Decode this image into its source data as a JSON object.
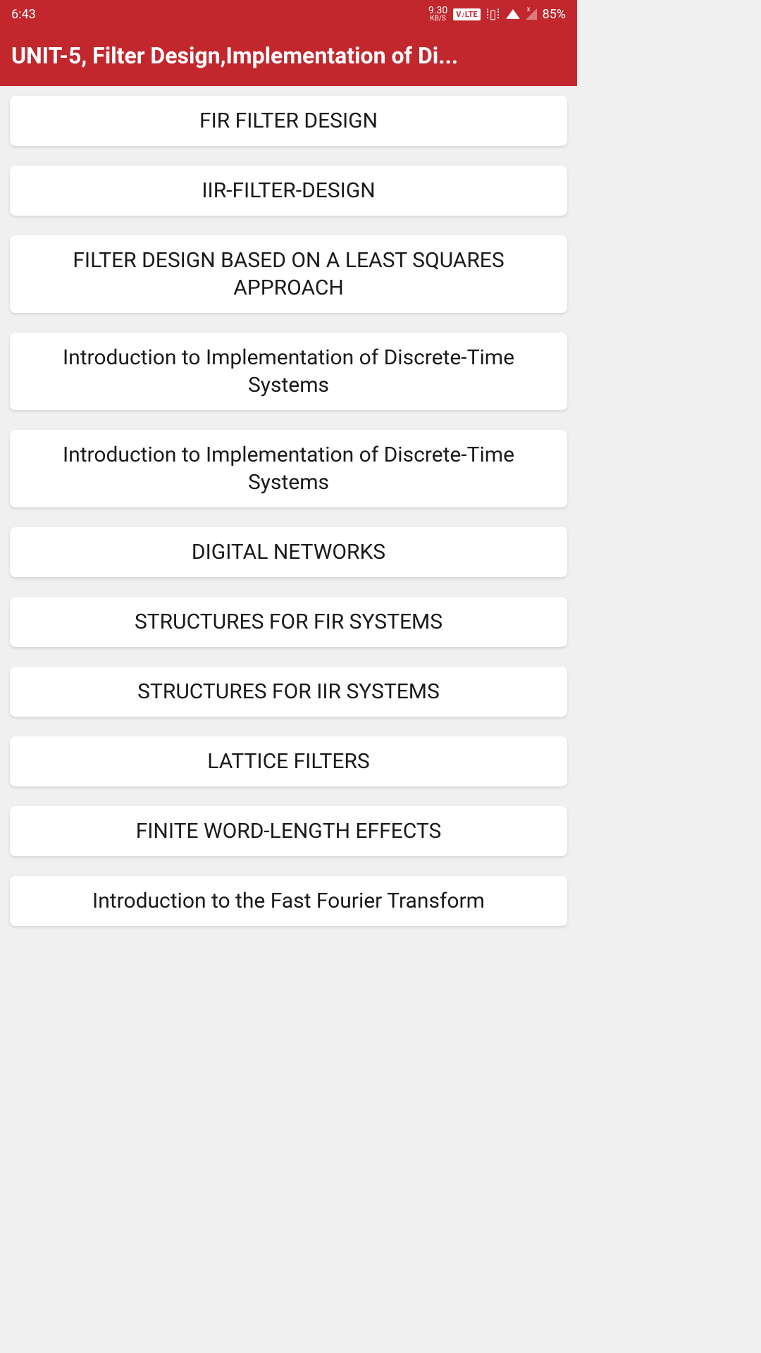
{
  "status": {
    "time": "6:43",
    "data_rate": "9.30",
    "data_unit": "KB/S",
    "volte": "V♪LTE",
    "battery": "85%",
    "signal_x": "x"
  },
  "header": {
    "title": "UNIT-5, Filter Design,Implementation of Di..."
  },
  "items": [
    {
      "label": "FIR FILTER DESIGN"
    },
    {
      "label": "IIR-FILTER-DESIGN"
    },
    {
      "label": "FILTER DESIGN BASED ON A LEAST SQUARES APPROACH"
    },
    {
      "label": "Introduction to Implementation of Discrete-Time Systems"
    },
    {
      "label": "Introduction to Implementation of Discrete-Time Systems"
    },
    {
      "label": "DIGITAL NETWORKS"
    },
    {
      "label": "STRUCTURES FOR FIR SYSTEMS"
    },
    {
      "label": "STRUCTURES FOR IIR SYSTEMS"
    },
    {
      "label": "LATTICE FILTERS"
    },
    {
      "label": "FINITE WORD-LENGTH EFFECTS"
    },
    {
      "label": "Introduction to the Fast Fourier Transform"
    }
  ]
}
